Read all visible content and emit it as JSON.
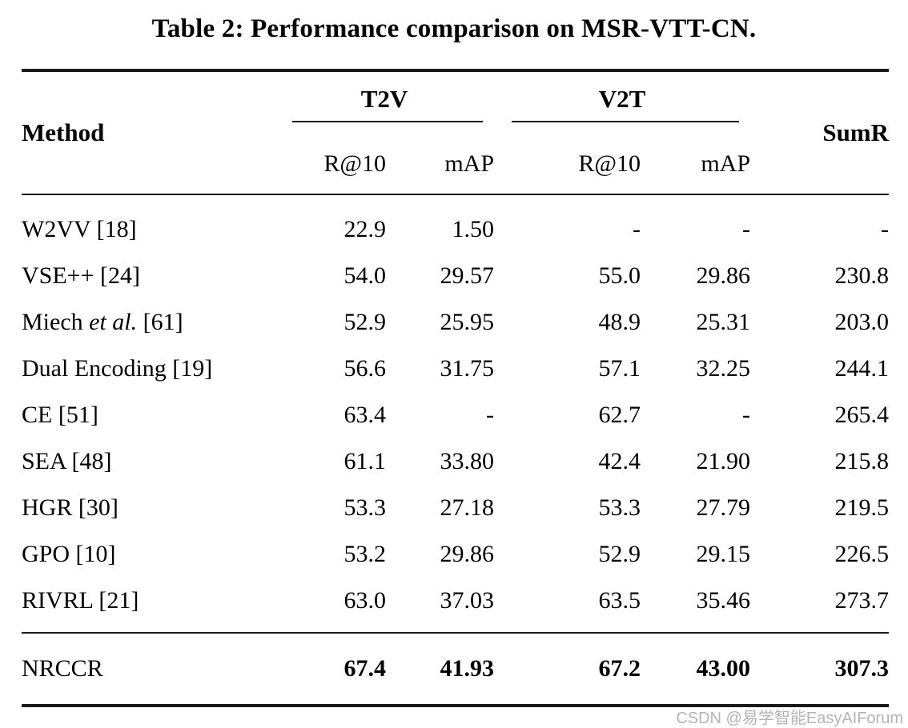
{
  "page": {
    "title": "Table 2: Performance comparison on MSR-VTT-CN.",
    "watermark": "CSDN @易学智能EasyAIForum"
  },
  "table": {
    "headers": {
      "method": "Method",
      "group_t2v": "T2V",
      "group_v2t": "V2T",
      "sumr": "SumR",
      "sub": [
        "R@10",
        "mAP",
        "R@10",
        "mAP"
      ]
    },
    "rows": [
      {
        "pre": "W2VV [18]",
        "it": "",
        "post": "",
        "v": [
          "22.9",
          "1.50",
          "-",
          "-",
          "-"
        ]
      },
      {
        "pre": "VSE++ [24]",
        "it": "",
        "post": "",
        "v": [
          "54.0",
          "29.57",
          "55.0",
          "29.86",
          "230.8"
        ]
      },
      {
        "pre": "Miech ",
        "it": "et al.",
        "post": " [61]",
        "v": [
          "52.9",
          "25.95",
          "48.9",
          "25.31",
          "203.0"
        ]
      },
      {
        "pre": "Dual Encoding [19]",
        "it": "",
        "post": "",
        "v": [
          "56.6",
          "31.75",
          "57.1",
          "32.25",
          "244.1"
        ]
      },
      {
        "pre": "CE [51]",
        "it": "",
        "post": "",
        "v": [
          "63.4",
          "-",
          "62.7",
          "-",
          "265.4"
        ]
      },
      {
        "pre": "SEA [48]",
        "it": "",
        "post": "",
        "v": [
          "61.1",
          "33.80",
          "42.4",
          "21.90",
          "215.8"
        ]
      },
      {
        "pre": "HGR [30]",
        "it": "",
        "post": "",
        "v": [
          "53.3",
          "27.18",
          "53.3",
          "27.79",
          "219.5"
        ]
      },
      {
        "pre": "GPO [10]",
        "it": "",
        "post": "",
        "v": [
          "53.2",
          "29.86",
          "52.9",
          "29.15",
          "226.5"
        ]
      },
      {
        "pre": "RIVRL [21]",
        "it": "",
        "post": "",
        "v": [
          "63.0",
          "37.03",
          "63.5",
          "35.46",
          "273.7"
        ]
      }
    ],
    "final": {
      "pre": "NRCCR",
      "it": "",
      "post": "",
      "v": [
        "67.4",
        "41.93",
        "67.2",
        "43.00",
        "307.3"
      ]
    }
  }
}
